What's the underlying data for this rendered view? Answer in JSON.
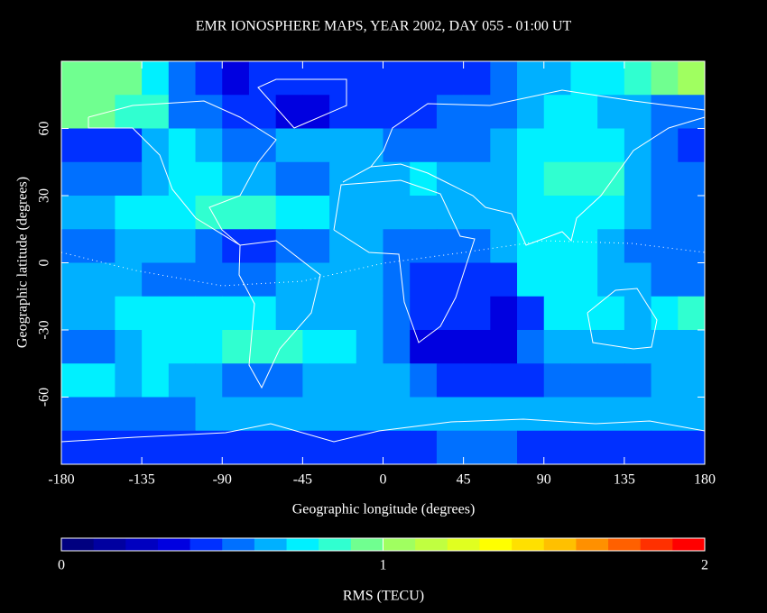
{
  "chart_data": {
    "type": "heatmap",
    "title": "EMR IONOSPHERE MAPS, YEAR 2002, DAY 055 - 01:00 UT",
    "xlabel": "Geographic longitude (degrees)",
    "ylabel": "Geographic latitude (degrees)",
    "x": [
      -172.5,
      -157.5,
      -142.5,
      -127.5,
      -112.5,
      -97.5,
      -82.5,
      -67.5,
      -52.5,
      -37.5,
      -22.5,
      -7.5,
      7.5,
      22.5,
      37.5,
      52.5,
      67.5,
      82.5,
      97.5,
      112.5,
      127.5,
      142.5,
      157.5,
      172.5
    ],
    "y": [
      82.5,
      67.5,
      52.5,
      37.5,
      22.5,
      7.5,
      -7.5,
      -22.5,
      -37.5,
      -52.5,
      -67.5,
      -82.5
    ],
    "z": [
      [
        0.95,
        0.95,
        0.9,
        0.7,
        0.55,
        0.4,
        0.35,
        0.4,
        0.4,
        0.4,
        0.45,
        0.45,
        0.45,
        0.4,
        0.45,
        0.45,
        0.5,
        0.65,
        0.65,
        0.7,
        0.75,
        0.85,
        0.95,
        1
      ],
      [
        0.9,
        0.9,
        0.85,
        0.8,
        0.55,
        0.5,
        0.45,
        0.4,
        0.35,
        0.35,
        0.4,
        0.45,
        0.45,
        0.45,
        0.5,
        0.5,
        0.55,
        0.65,
        0.7,
        0.7,
        0.65,
        0.6,
        0.55,
        0.5
      ],
      [
        0.4,
        0.4,
        0.45,
        0.65,
        0.7,
        0.6,
        0.55,
        0.55,
        0.6,
        0.65,
        0.65,
        0.6,
        0.55,
        0.5,
        0.5,
        0.55,
        0.6,
        0.7,
        0.75,
        0.75,
        0.7,
        0.65,
        0.5,
        0.4
      ],
      [
        0.5,
        0.5,
        0.55,
        0.65,
        0.7,
        0.7,
        0.65,
        0.6,
        0.55,
        0.55,
        0.6,
        0.65,
        0.65,
        0.7,
        0.65,
        0.65,
        0.6,
        0.7,
        0.8,
        0.85,
        0.8,
        0.65,
        0.55,
        0.5
      ],
      [
        0.65,
        0.65,
        0.7,
        0.75,
        0.75,
        0.8,
        0.85,
        0.8,
        0.7,
        0.7,
        0.65,
        0.65,
        0.65,
        0.65,
        0.6,
        0.6,
        0.65,
        0.75,
        0.75,
        0.75,
        0.7,
        0.6,
        0.55,
        0.55
      ],
      [
        0.5,
        0.55,
        0.6,
        0.6,
        0.65,
        0.55,
        0.45,
        0.45,
        0.5,
        0.55,
        0.6,
        0.6,
        0.55,
        0.55,
        0.55,
        0.5,
        0.6,
        0.7,
        0.7,
        0.7,
        0.65,
        0.55,
        0.5,
        0.5
      ],
      [
        0.65,
        0.65,
        0.6,
        0.55,
        0.5,
        0.5,
        0.5,
        0.55,
        0.65,
        0.65,
        0.65,
        0.6,
        0.5,
        0.45,
        0.45,
        0.4,
        0.45,
        0.7,
        0.7,
        0.7,
        0.65,
        0.6,
        0.55,
        0.55
      ],
      [
        0.65,
        0.65,
        0.7,
        0.7,
        0.7,
        0.7,
        0.7,
        0.7,
        0.65,
        0.65,
        0.65,
        0.6,
        0.5,
        0.45,
        0.45,
        0.4,
        0.3,
        0.4,
        0.7,
        0.7,
        0.7,
        0.65,
        0.75,
        0.8
      ],
      [
        0.5,
        0.5,
        0.6,
        0.7,
        0.7,
        0.75,
        0.85,
        0.85,
        0.8,
        0.7,
        0.7,
        0.65,
        0.55,
        0.35,
        0.3,
        0.3,
        0.3,
        0.5,
        0.65,
        0.65,
        0.6,
        0.6,
        0.65,
        0.65
      ],
      [
        0.7,
        0.7,
        0.65,
        0.7,
        0.65,
        0.6,
        0.5,
        0.5,
        0.55,
        0.65,
        0.65,
        0.65,
        0.6,
        0.5,
        0.4,
        0.4,
        0.4,
        0.45,
        0.5,
        0.55,
        0.5,
        0.55,
        0.65,
        0.65
      ],
      [
        0.55,
        0.5,
        0.5,
        0.5,
        0.55,
        0.6,
        0.65,
        0.6,
        0.65,
        0.65,
        0.6,
        0.6,
        0.6,
        0.6,
        0.65,
        0.6,
        0.6,
        0.65,
        0.65,
        0.65,
        0.6,
        0.6,
        0.6,
        0.65
      ],
      [
        0.4,
        0.4,
        0.4,
        0.4,
        0.4,
        0.45,
        0.45,
        0.45,
        0.45,
        0.4,
        0.4,
        0.4,
        0.45,
        0.45,
        0.5,
        0.5,
        0.5,
        0.45,
        0.45,
        0.4,
        0.4,
        0.4,
        0.4,
        0.4
      ]
    ],
    "xlim": [
      -180,
      180
    ],
    "ylim": [
      -90,
      90
    ],
    "xticks": [
      -180,
      -135,
      -90,
      -45,
      0,
      45,
      90,
      135,
      180
    ],
    "yticks": [
      -60,
      -30,
      0,
      30,
      60
    ],
    "colorbar": {
      "label": "RMS (TECU)",
      "lim": [
        0,
        2
      ],
      "ticks": [
        0,
        1,
        2
      ],
      "colors": [
        "#000080",
        "#0000a0",
        "#0000c0",
        "#0000e0",
        "#0030ff",
        "#0070ff",
        "#00b0ff",
        "#00f0ff",
        "#30ffd0",
        "#70ff90",
        "#a0ff60",
        "#c0ff40",
        "#e0ff20",
        "#ffff00",
        "#ffe000",
        "#ffc000",
        "#ff9000",
        "#ff6000",
        "#ff3000",
        "#ff0000"
      ]
    }
  }
}
